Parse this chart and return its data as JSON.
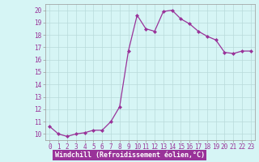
{
  "x": [
    0,
    1,
    2,
    3,
    4,
    5,
    6,
    7,
    8,
    9,
    10,
    11,
    12,
    13,
    14,
    15,
    16,
    17,
    18,
    19,
    20,
    21,
    22,
    23
  ],
  "y": [
    10.6,
    10.0,
    9.8,
    10.0,
    10.1,
    10.3,
    10.3,
    11.0,
    12.2,
    16.7,
    19.6,
    18.5,
    18.3,
    19.9,
    20.0,
    19.3,
    18.9,
    18.3,
    17.9,
    17.6,
    16.6,
    16.5,
    16.7,
    16.7
  ],
  "line_color": "#993399",
  "marker": "D",
  "marker_size": 2,
  "bg_color": "#d6f5f5",
  "grid_color": "#b8dada",
  "xlabel": "Windchill (Refroidissement éolien,°C)",
  "xlabel_bg": "#993399",
  "xlabel_color": "#ffffff",
  "ylabel_ticks": [
    10,
    11,
    12,
    13,
    14,
    15,
    16,
    17,
    18,
    19,
    20
  ],
  "ylim": [
    9.5,
    20.5
  ],
  "xlim": [
    -0.5,
    23.5
  ],
  "tick_fontsize": 5.5,
  "xlabel_fontsize": 6.0
}
